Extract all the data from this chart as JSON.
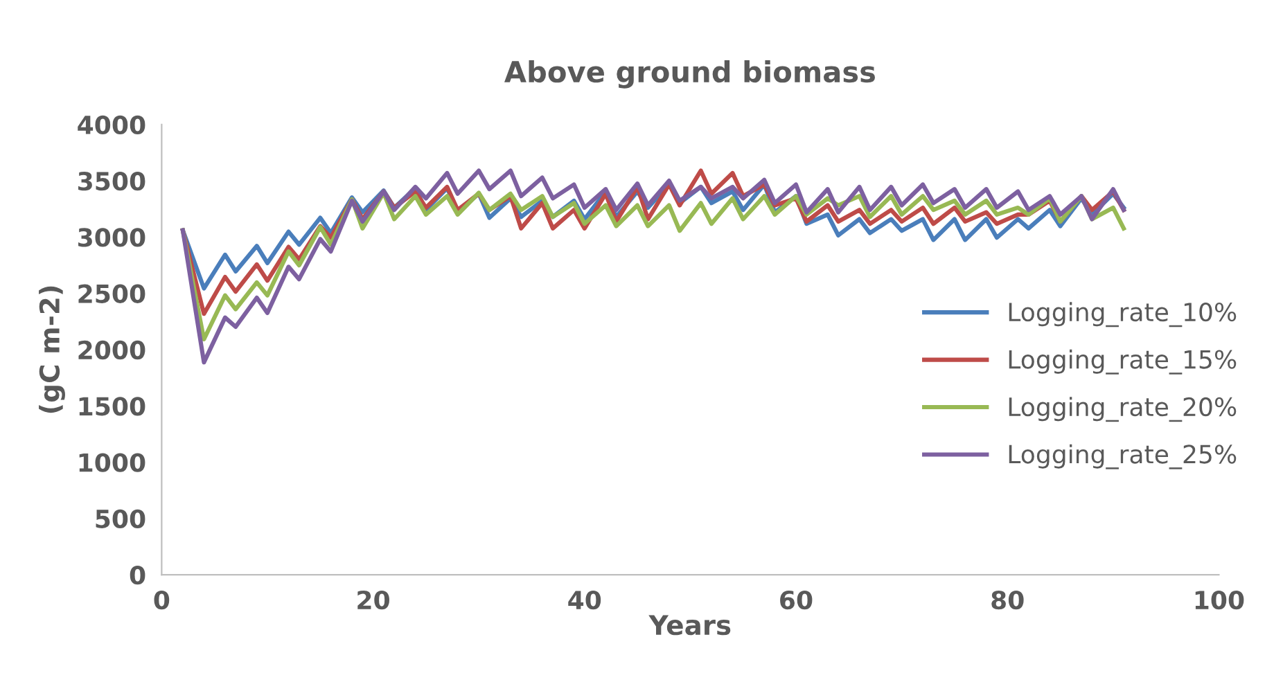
{
  "chart_data": {
    "type": "line",
    "title": "Above ground biomass",
    "xlabel": "Years",
    "ylabel": "(gC m-2)",
    "x": [
      2,
      4,
      6,
      7,
      9,
      10,
      12,
      13,
      15,
      16,
      18,
      19,
      21,
      22,
      24,
      25,
      27,
      28,
      30,
      31,
      33,
      34,
      36,
      37,
      39,
      40,
      42,
      43,
      45,
      46,
      48,
      49,
      51,
      52,
      54,
      55,
      57,
      58,
      60,
      61,
      63,
      64,
      66,
      67,
      69,
      70,
      72,
      73,
      75,
      76,
      78,
      79,
      81,
      82,
      84,
      85,
      87,
      88,
      90,
      91
    ],
    "series": [
      {
        "name": "Logging_rate_10%",
        "color": "#4a7ebb",
        "values": [
          3060,
          2544,
          2843,
          2695,
          2921,
          2769,
          3048,
          2933,
          3171,
          3036,
          3352,
          3220,
          3413,
          3261,
          3434,
          3241,
          3434,
          3229,
          3385,
          3171,
          3344,
          3179,
          3323,
          3179,
          3323,
          3159,
          3405,
          3179,
          3405,
          3261,
          3467,
          3302,
          3446,
          3302,
          3405,
          3241,
          3467,
          3220,
          3364,
          3118,
          3200,
          3015,
          3159,
          3036,
          3159,
          3056,
          3159,
          2974,
          3159,
          2974,
          3159,
          2995,
          3159,
          3077,
          3241,
          3097,
          3344,
          3200,
          3385,
          3261
        ]
      },
      {
        "name": "Logging_rate_15%",
        "color": "#be4b48",
        "values": [
          3060,
          2318,
          2646,
          2515,
          2757,
          2613,
          2913,
          2802,
          3097,
          2995,
          3335,
          3159,
          3405,
          3261,
          3405,
          3261,
          3446,
          3241,
          3385,
          3241,
          3364,
          3077,
          3302,
          3077,
          3241,
          3077,
          3385,
          3138,
          3446,
          3159,
          3467,
          3282,
          3590,
          3385,
          3569,
          3364,
          3467,
          3282,
          3344,
          3138,
          3282,
          3138,
          3241,
          3118,
          3241,
          3138,
          3261,
          3118,
          3261,
          3138,
          3220,
          3118,
          3200,
          3200,
          3323,
          3138,
          3364,
          3241,
          3405,
          3241
        ]
      },
      {
        "name": "Logging_rate_20%",
        "color": "#98b954",
        "values": [
          3060,
          2092,
          2482,
          2359,
          2597,
          2482,
          2872,
          2749,
          3089,
          2933,
          3335,
          3077,
          3393,
          3159,
          3364,
          3200,
          3364,
          3200,
          3393,
          3241,
          3385,
          3241,
          3364,
          3179,
          3302,
          3118,
          3282,
          3097,
          3282,
          3097,
          3282,
          3056,
          3302,
          3118,
          3344,
          3159,
          3364,
          3200,
          3364,
          3200,
          3344,
          3282,
          3364,
          3179,
          3364,
          3200,
          3364,
          3241,
          3323,
          3200,
          3323,
          3200,
          3261,
          3200,
          3344,
          3138,
          3364,
          3159,
          3261,
          3077
        ]
      },
      {
        "name": "Logging_rate_25%",
        "color": "#7d60a0",
        "values": [
          3060,
          1887,
          2285,
          2203,
          2461,
          2326,
          2736,
          2626,
          2982,
          2872,
          3323,
          3138,
          3405,
          3241,
          3446,
          3344,
          3569,
          3385,
          3590,
          3426,
          3590,
          3364,
          3528,
          3344,
          3467,
          3261,
          3426,
          3241,
          3475,
          3282,
          3500,
          3323,
          3446,
          3344,
          3446,
          3344,
          3508,
          3302,
          3467,
          3220,
          3426,
          3220,
          3446,
          3241,
          3446,
          3282,
          3467,
          3302,
          3426,
          3261,
          3426,
          3261,
          3405,
          3241,
          3364,
          3200,
          3364,
          3159,
          3426,
          3241
        ]
      }
    ],
    "xlim": [
      0,
      100
    ],
    "xticks": [
      0,
      20,
      40,
      60,
      80,
      100
    ],
    "ylim": [
      0,
      4000
    ],
    "yticks": [
      0,
      500,
      1000,
      1500,
      2000,
      2500,
      3000,
      3500,
      4000
    ],
    "grid": false,
    "legend": "right",
    "marker": "none",
    "line_style": "solid"
  }
}
